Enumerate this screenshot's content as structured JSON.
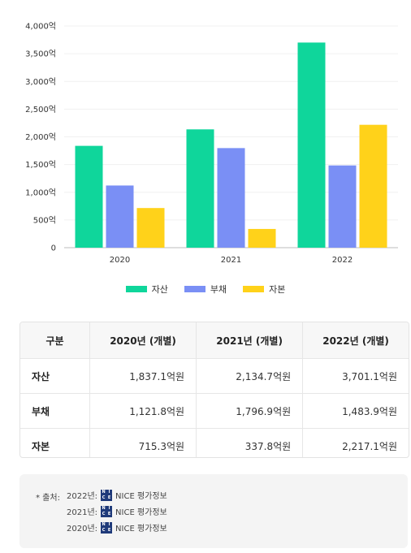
{
  "chart_data": {
    "type": "bar",
    "categories": [
      "2020",
      "2021",
      "2022"
    ],
    "series": [
      {
        "name": "자산",
        "color": "#0fd69b",
        "values": [
          1837.1,
          2134.7,
          3701.1
        ]
      },
      {
        "name": "부채",
        "color": "#7a8ff5",
        "values": [
          1121.8,
          1796.9,
          1483.9
        ]
      },
      {
        "name": "자본",
        "color": "#ffd21a",
        "values": [
          715.3,
          337.8,
          2217.1
        ]
      }
    ],
    "ylim": [
      0,
      4000
    ],
    "yticks": [
      "0",
      "500억",
      "1,000억",
      "1,500억",
      "2,000억",
      "2,500억",
      "3,000억",
      "3,500억",
      "4,000억"
    ],
    "grid": true,
    "legend_position": "bottom-center"
  },
  "table": {
    "headers": [
      "구분",
      "2020년 (개별)",
      "2021년 (개별)",
      "2022년 (개별)"
    ],
    "rows": [
      {
        "label": "자산",
        "values": [
          "1,837.1억원",
          "2,134.7억원",
          "3,701.1억원"
        ]
      },
      {
        "label": "부채",
        "values": [
          "1,121.8억원",
          "1,796.9억원",
          "1,483.9억원"
        ]
      },
      {
        "label": "자본",
        "values": [
          "715.3억원",
          "337.8억원",
          "2,217.1억원"
        ]
      }
    ]
  },
  "source": {
    "prefix": "* 출처:",
    "entries": [
      {
        "year": "2022년:",
        "logo_icon": "nice-logo-icon",
        "name": "NICE 평가정보"
      },
      {
        "year": "2021년:",
        "logo_icon": "nice-logo-icon",
        "name": "NICE 평가정보"
      },
      {
        "year": "2020년:",
        "logo_icon": "nice-logo-icon",
        "name": "NICE 평가정보"
      }
    ]
  }
}
